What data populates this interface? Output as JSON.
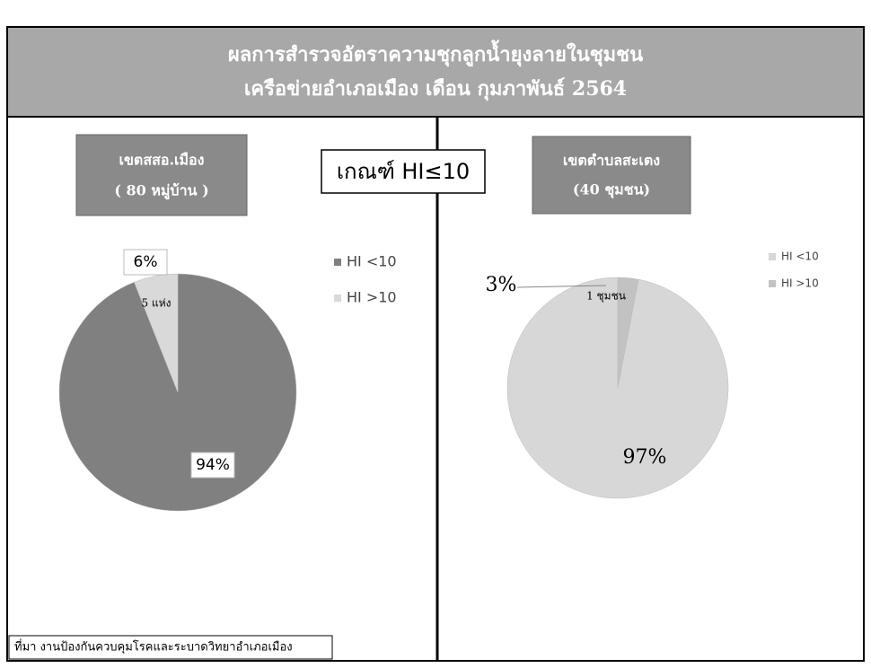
{
  "header": {
    "title": [
      "ผลการสำรวจอัตราความชุกลูกน้ำยุงลายในชุมชน",
      "เครือข่ายอำเภอเมือง เดือน กุมภาพันธ์ 2564"
    ]
  },
  "criterion": "เกณฑ์ HI≤10",
  "source": "ที่มา งานป้องกันควบคุมโรคและระบาดวิทยาอำเภอเมือง",
  "chart_data": [
    {
      "type": "pie",
      "title": [
        "เขตสสอ.เมือง",
        "( 80 หมู่บ้าน )"
      ],
      "direction": "clockwise",
      "categories": [
        "HI <10",
        "HI >10"
      ],
      "values": [
        94,
        6
      ],
      "value_labels": [
        "94%",
        "6%"
      ],
      "colors": [
        "#808080",
        "#d9d9d9"
      ],
      "annotation": "5 แห่ง"
    },
    {
      "type": "pie",
      "title": [
        "เขตตำบลสะเตง",
        "(40 ชุมชน)"
      ],
      "direction": "counterclockwise",
      "categories": [
        "HI <10",
        "HI >10"
      ],
      "values": [
        97,
        3
      ],
      "value_labels": [
        "97%",
        "3%"
      ],
      "colors": [
        "#d7d7d7",
        "#c2c2c2"
      ],
      "annotation": "1 ชุมชน"
    }
  ]
}
